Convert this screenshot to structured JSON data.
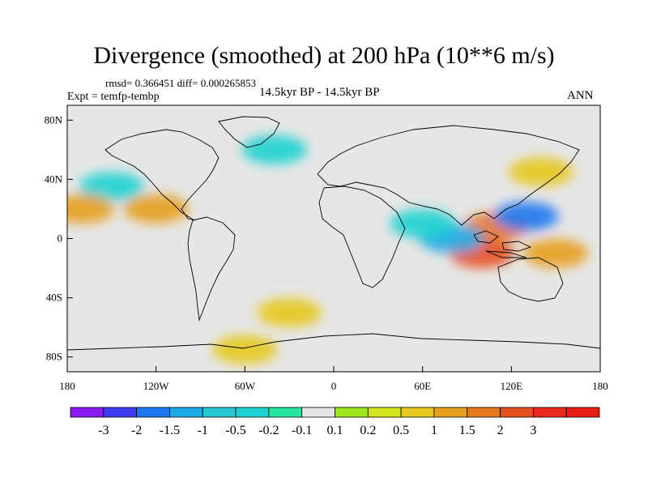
{
  "title": "Divergence (smoothed) at 200 hPa (10**6 m/s)",
  "stats": {
    "rmsd_label": "rmsd= 0.366451",
    "diff_label": "diff= 0.000265853"
  },
  "experiment": "Expt = temfp-tembp",
  "period": "14.5kyr BP - 14.5kyr BP",
  "season": "ANN",
  "axes": {
    "lat_ticks": [
      {
        "value": 80,
        "label": "80N"
      },
      {
        "value": 40,
        "label": "40N"
      },
      {
        "value": 0,
        "label": "0"
      },
      {
        "value": -40,
        "label": "40S"
      },
      {
        "value": -80,
        "label": "80S"
      }
    ],
    "lon_ticks": [
      {
        "value": -180,
        "label": "180"
      },
      {
        "value": -120,
        "label": "120W"
      },
      {
        "value": -60,
        "label": "60W"
      },
      {
        "value": 0,
        "label": "0"
      },
      {
        "value": 60,
        "label": "60E"
      },
      {
        "value": 120,
        "label": "120E"
      },
      {
        "value": 180,
        "label": "180"
      }
    ]
  },
  "colorbar": {
    "colors": [
      "#8a1cf0",
      "#3c3cf0",
      "#1e78f0",
      "#1eaae6",
      "#28c8d2",
      "#1ed2d2",
      "#28e6a0",
      "#e6e6e6",
      "#a0e61e",
      "#d2e61e",
      "#e6c81e",
      "#e6a01e",
      "#e6781e",
      "#e6501e",
      "#e6281e",
      "#e61e14"
    ],
    "labels": [
      "-3",
      "-2",
      "-1.5",
      "-1",
      "-0.5",
      "-0.2",
      "-0.1",
      "0.1",
      "0.2",
      "0.5",
      "1",
      "1.5",
      "2",
      "3"
    ]
  },
  "chart_data": {
    "type": "heatmap",
    "variable": "Divergence (smoothed) at 200 hPa",
    "units": "10**6 m/s",
    "lon_range": [
      -180,
      180
    ],
    "lat_range": [
      -90,
      90
    ],
    "levels": [
      -3,
      -2,
      -1.5,
      -1,
      -0.5,
      -0.2,
      -0.1,
      0.1,
      0.2,
      0.5,
      1,
      1.5,
      2,
      3
    ],
    "features": [
      {
        "lon": 110,
        "lat": 8,
        "value": 1.5
      },
      {
        "lon": 100,
        "lat": -10,
        "value": 2
      },
      {
        "lon": 130,
        "lat": 15,
        "value": -2
      },
      {
        "lon": 80,
        "lat": 0,
        "value": -1.5
      },
      {
        "lon": -40,
        "lat": 60,
        "value": -0.5
      },
      {
        "lon": -150,
        "lat": 35,
        "value": -0.5
      },
      {
        "lon": -170,
        "lat": 20,
        "value": 1
      },
      {
        "lon": -120,
        "lat": 20,
        "value": 1
      },
      {
        "lon": 60,
        "lat": 10,
        "value": -0.5
      },
      {
        "lon": 140,
        "lat": 45,
        "value": 0.5
      },
      {
        "lon": 150,
        "lat": -10,
        "value": 1
      },
      {
        "lon": -30,
        "lat": -50,
        "value": 0.5
      },
      {
        "lon": -60,
        "lat": -75,
        "value": 0.5
      }
    ]
  }
}
